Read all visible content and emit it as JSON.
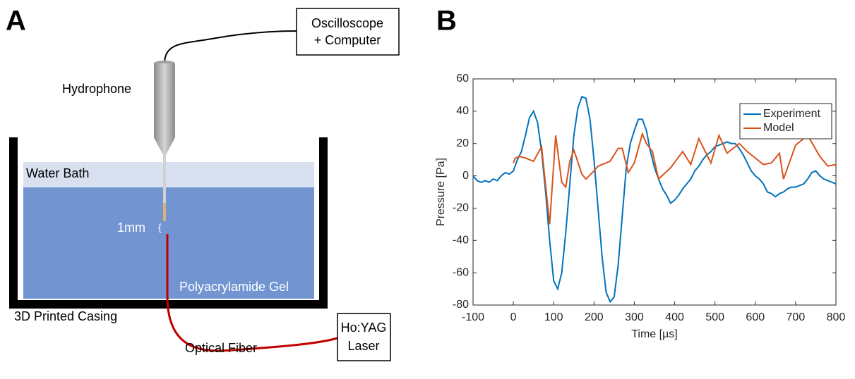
{
  "panel_a": {
    "letter": "A",
    "labels": {
      "scope": [
        "Oscilloscope",
        "+ Computer"
      ],
      "hydrophone": "Hydrophone",
      "water": "Water Bath",
      "gap": "1mm",
      "gel": "Polyacrylamide Gel",
      "casing": "3D Printed Casing",
      "fiber": "Optical Fiber",
      "laser": [
        "Ho:YAG",
        "Laser"
      ]
    }
  },
  "chart_data": {
    "type": "line",
    "panel_letter": "B",
    "x_label": "Time [µs]",
    "y_label": "Pressure [Pa]",
    "xlim": [
      -100,
      800
    ],
    "xticks": [
      -100,
      0,
      100,
      200,
      300,
      400,
      500,
      600,
      700,
      800
    ],
    "ylim": [
      -80,
      60
    ],
    "yticks": [
      -80,
      -60,
      -40,
      -20,
      0,
      20,
      40,
      60
    ],
    "legend": "top-right",
    "series": [
      {
        "name": "Experiment",
        "color": "#0072bd",
        "x": [
          -100,
          -90,
          -80,
          -70,
          -60,
          -50,
          -40,
          -30,
          -20,
          -10,
          0,
          10,
          20,
          30,
          40,
          50,
          60,
          70,
          80,
          90,
          100,
          110,
          120,
          130,
          140,
          150,
          160,
          170,
          180,
          190,
          200,
          210,
          220,
          230,
          240,
          250,
          260,
          270,
          280,
          290,
          300,
          310,
          320,
          330,
          340,
          350,
          360,
          370,
          380,
          390,
          400,
          410,
          420,
          430,
          440,
          450,
          460,
          470,
          480,
          490,
          500,
          510,
          520,
          530,
          540,
          550,
          560,
          570,
          580,
          590,
          600,
          610,
          620,
          630,
          640,
          650,
          660,
          670,
          680,
          690,
          700,
          710,
          720,
          730,
          740,
          750,
          760,
          770,
          780,
          790,
          800
        ],
        "values": [
          0,
          -3,
          -4,
          -3,
          -4,
          -2,
          -3,
          0,
          2,
          1,
          3,
          10,
          15,
          25,
          36,
          40,
          33,
          15,
          -10,
          -40,
          -65,
          -70,
          -60,
          -35,
          -5,
          25,
          42,
          49,
          48,
          35,
          10,
          -20,
          -50,
          -72,
          -78,
          -75,
          -55,
          -25,
          5,
          20,
          28,
          35,
          35,
          28,
          15,
          5,
          -2,
          -8,
          -12,
          -17,
          -15,
          -12,
          -8,
          -5,
          -2,
          3,
          6,
          10,
          13,
          15,
          18,
          19,
          20,
          21,
          20,
          20,
          17,
          13,
          8,
          3,
          0,
          -2,
          -5,
          -10,
          -11,
          -13,
          -11,
          -10,
          -8,
          -7,
          -7,
          -6,
          -5,
          -2,
          2,
          3,
          0,
          -2,
          -3,
          -4,
          -5
        ]
      },
      {
        "name": "Model",
        "color": "#d95319",
        "x": [
          0,
          5,
          15,
          30,
          50,
          70,
          90,
          105,
          120,
          130,
          140,
          150,
          170,
          180,
          200,
          210,
          240,
          260,
          270,
          285,
          300,
          320,
          330,
          345,
          360,
          390,
          420,
          440,
          460,
          490,
          510,
          530,
          560,
          580,
          600,
          620,
          640,
          660,
          670,
          700,
          730,
          760,
          780,
          800
        ],
        "values": [
          8,
          11,
          12,
          11,
          9,
          18,
          -30,
          25,
          -4,
          -7,
          9,
          16,
          1,
          -2,
          3,
          6,
          9,
          17,
          17,
          2,
          8,
          26,
          20,
          15,
          -2,
          5,
          15,
          7,
          23,
          8,
          25,
          14,
          20,
          15,
          11,
          7,
          8,
          14,
          -2,
          19,
          25,
          12,
          6,
          7
        ]
      }
    ]
  }
}
